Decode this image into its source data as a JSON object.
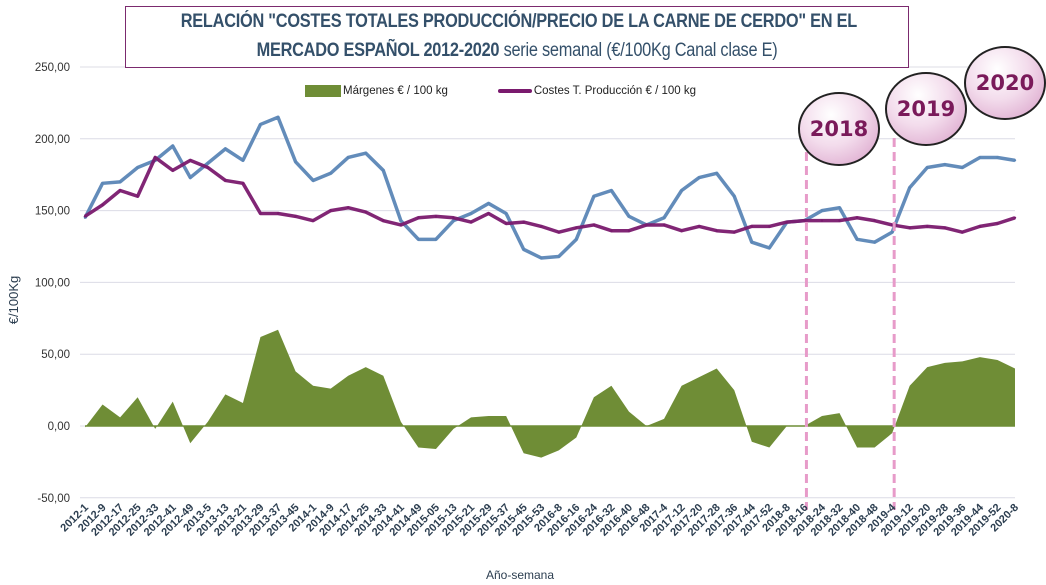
{
  "title": {
    "line1": "RELACIÓN \"COSTES TOTALES PRODUCCIÓN/PRECIO DE LA CARNE DE CERDO\" EN EL",
    "line2_bold": "MERCADO ESPAÑOL 2012-2020",
    "line2_rest": "serie semanal (€/100Kg Canal clase E)"
  },
  "annotations": {
    "year_bubbles": [
      "2018",
      "2019",
      "2020"
    ],
    "dashed_lines_at": [
      "2018-16",
      "2019-4"
    ],
    "colors": {
      "bubble": "#e8b9da",
      "dashed": "#e79bc9"
    }
  },
  "chart_data": {
    "type": "line",
    "xlabel": "Año-semana",
    "ylabel": "€/100Kg",
    "ylim": [
      -50,
      250
    ],
    "yticks": [
      "250,00",
      "200,00",
      "150,00",
      "100,00",
      "50,00",
      "0,00",
      "-50,00"
    ],
    "ytick_values": [
      250,
      200,
      150,
      100,
      50,
      0,
      -50
    ],
    "grid": true,
    "legend": "top-center",
    "categories": [
      "2012-1",
      "2012-9",
      "2012-17",
      "2012-25",
      "2012-33",
      "2012-41",
      "2012-49",
      "2013-5",
      "2013-13",
      "2013-21",
      "2013-29",
      "2013-37",
      "2013-45",
      "2014-1",
      "2014-9",
      "2014-17",
      "2014-25",
      "2014-33",
      "2014-41",
      "2014-49",
      "2015-05",
      "2015-13",
      "2015-21",
      "2015-29",
      "2015-37",
      "2015-45",
      "2015-53",
      "2016-8",
      "2016-16",
      "2016-24",
      "2016-32",
      "2016-40",
      "2016-48",
      "2017-4",
      "2017-12",
      "2017-20",
      "2017-28",
      "2017-36",
      "2017-44",
      "2017-52",
      "2018-8",
      "2018-16",
      "2018-24",
      "2018-32",
      "2018-40",
      "2018-48",
      "2019-4",
      "2019-12",
      "2019-20",
      "2019-28",
      "2019-36",
      "2019-44",
      "2019-52",
      "2020-8"
    ],
    "series": [
      {
        "name": "Márgenes € / 100 kg",
        "type": "area",
        "color": "#6f8d36",
        "values": [
          -1,
          15,
          6,
          20,
          -2,
          17,
          -12,
          3,
          22,
          16,
          62,
          67,
          38,
          28,
          26,
          35,
          41,
          35,
          3,
          -15,
          -16,
          -2,
          6,
          7,
          7,
          -19,
          -22,
          -17,
          -8,
          20,
          28,
          10,
          0,
          5,
          28,
          34,
          40,
          25,
          -11,
          -15,
          0,
          0,
          7,
          9,
          -15,
          -15,
          -5,
          28,
          41,
          44,
          45,
          48,
          46,
          40
        ]
      },
      {
        "name": "Costes T. Producción € / 100 kg",
        "type": "line",
        "color": "#7a1a6e",
        "values": [
          146,
          154,
          164,
          160,
          187,
          178,
          185,
          180,
          171,
          169,
          148,
          148,
          146,
          143,
          150,
          152,
          149,
          143,
          140,
          145,
          146,
          145,
          142,
          148,
          141,
          142,
          139,
          135,
          138,
          140,
          136,
          136,
          140,
          140,
          136,
          139,
          136,
          135,
          139,
          139,
          142,
          143,
          143,
          143,
          145,
          143,
          140,
          138,
          139,
          138,
          135,
          139,
          141,
          145
        ]
      },
      {
        "type": "line",
        "color": "#5b86b6",
        "values": [
          145,
          169,
          170,
          180,
          185,
          195,
          173,
          183,
          193,
          185,
          210,
          215,
          184,
          171,
          176,
          187,
          190,
          178,
          143,
          130,
          130,
          143,
          148,
          155,
          148,
          123,
          117,
          118,
          130,
          160,
          164,
          146,
          140,
          145,
          164,
          173,
          176,
          160,
          128,
          124,
          142,
          143,
          150,
          152,
          130,
          128,
          135,
          166,
          180,
          182,
          180,
          187,
          187,
          185
        ]
      }
    ]
  }
}
